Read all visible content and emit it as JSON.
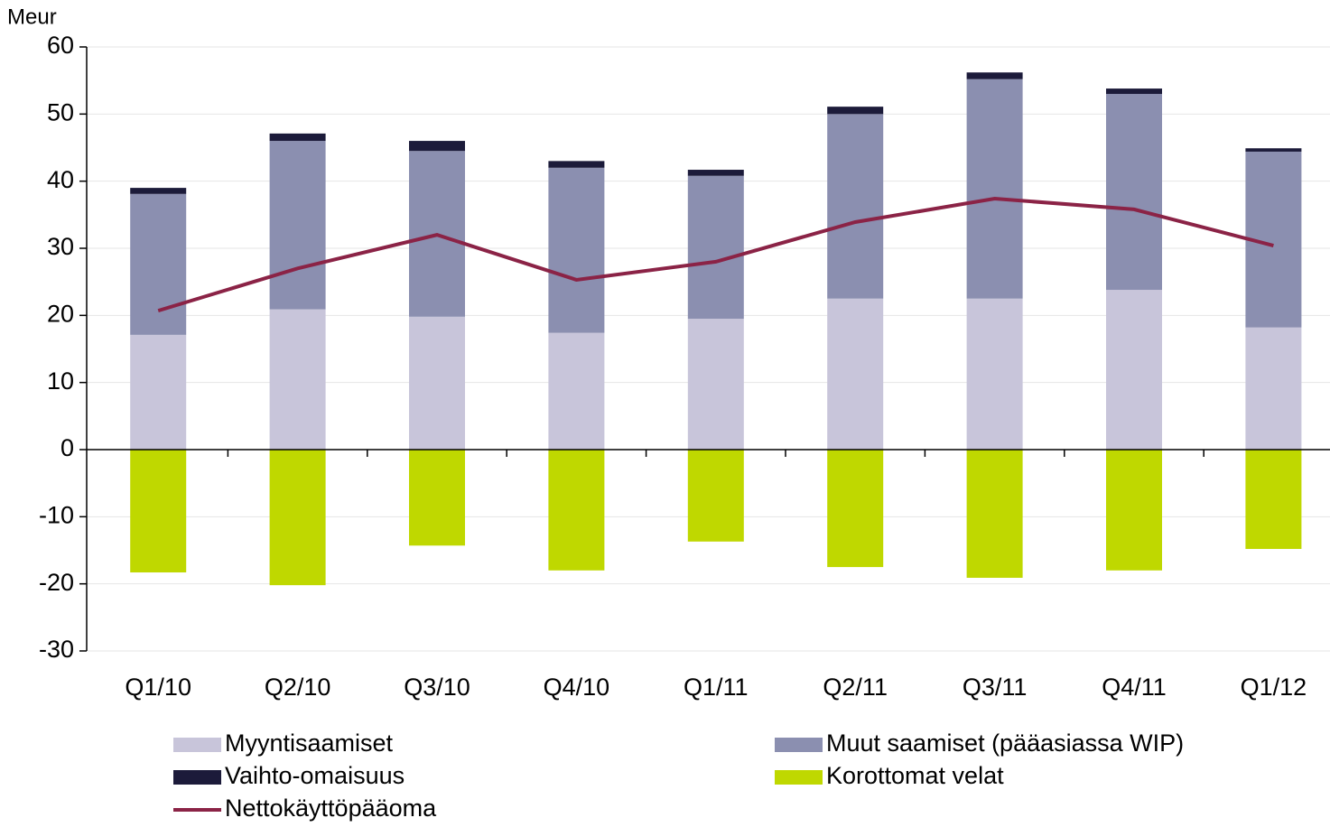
{
  "chart_data": {
    "type": "bar",
    "y_label": "Meur",
    "categories": [
      "Q1/10",
      "Q2/10",
      "Q3/10",
      "Q4/10",
      "Q1/11",
      "Q2/11",
      "Q3/11",
      "Q4/11",
      "Q1/12"
    ],
    "series": [
      {
        "name": "Myyntisaamiset",
        "type": "bar",
        "color": "#c8c5da",
        "values": [
          17.1,
          20.9,
          19.8,
          17.4,
          19.5,
          22.5,
          22.5,
          23.8,
          18.2
        ]
      },
      {
        "name": "Muut saamiset (pääasiassa WIP)",
        "type": "bar",
        "color": "#8b8fb0",
        "values": [
          21.0,
          25.1,
          24.7,
          24.6,
          21.3,
          27.5,
          32.7,
          29.2,
          26.2
        ]
      },
      {
        "name": "Vaihto-omaisuus",
        "type": "bar",
        "color": "#1c1b3a",
        "values": [
          0.9,
          1.1,
          1.5,
          1.0,
          0.9,
          1.1,
          1.0,
          0.8,
          0.5
        ]
      },
      {
        "name": "Korottomat velat",
        "type": "bar",
        "color": "#bfd800",
        "values": [
          -18.3,
          -20.2,
          -14.3,
          -18.0,
          -13.7,
          -17.5,
          -19.1,
          -18.0,
          -14.8
        ]
      },
      {
        "name": "Nettokäyttöpääoma",
        "type": "line",
        "color": "#8b2346",
        "values": [
          20.7,
          27.0,
          32.0,
          25.3,
          28.0,
          33.9,
          37.4,
          35.8,
          30.4
        ]
      }
    ],
    "stacked": true,
    "grid": true,
    "ylim": [
      -30,
      60
    ],
    "yticks": [
      -30,
      -20,
      -10,
      0,
      10,
      20,
      30,
      40,
      50,
      60
    ]
  }
}
